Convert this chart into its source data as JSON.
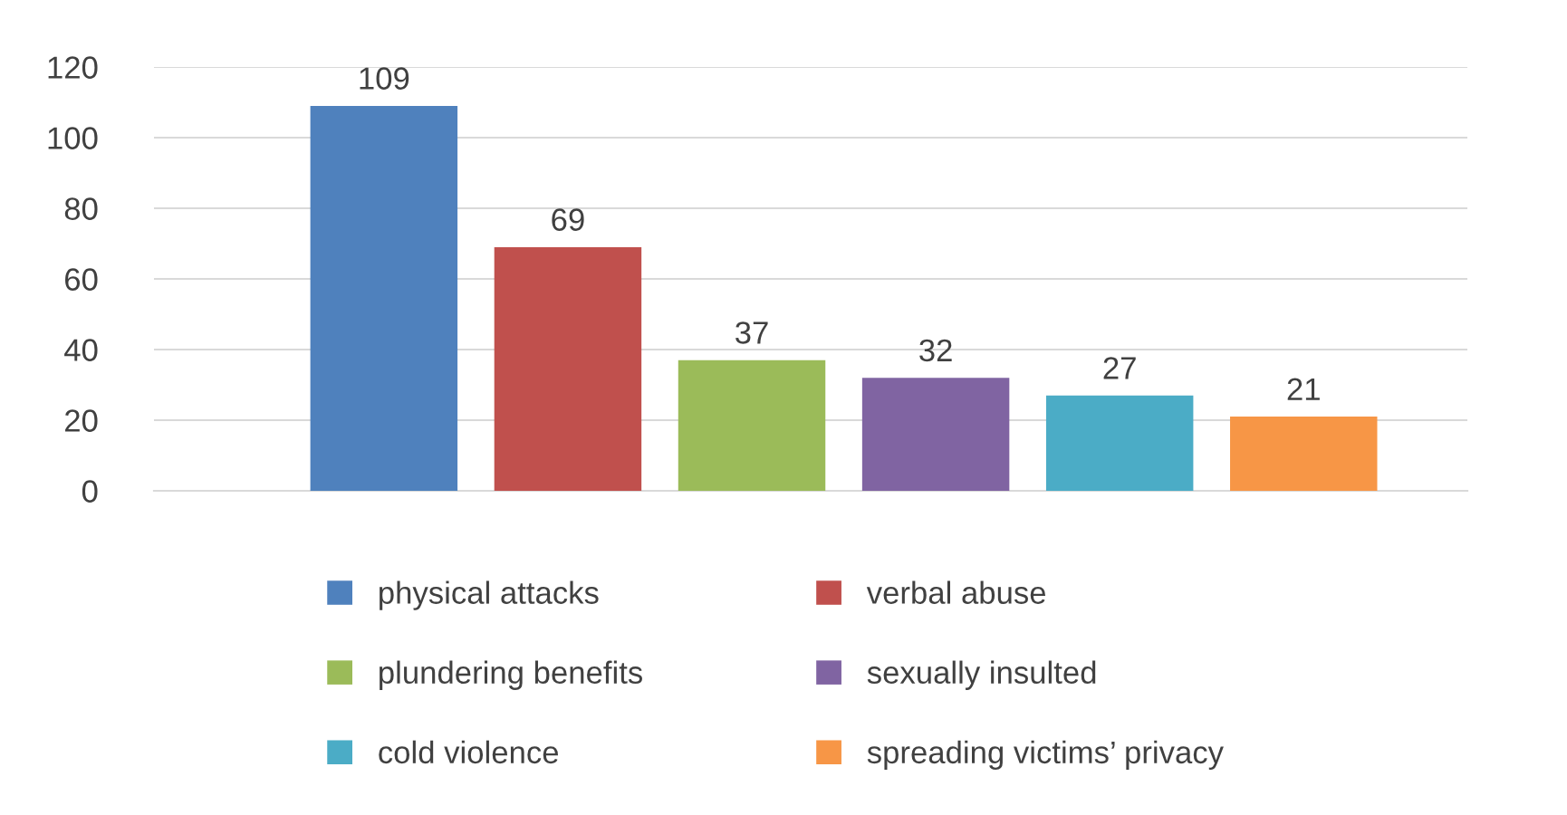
{
  "chart_data": {
    "type": "bar",
    "categories": [
      null,
      null,
      null,
      null,
      null,
      null
    ],
    "series": [
      {
        "name": "physical attacks",
        "color": "#4f81bd",
        "values": [
          109,
          null,
          null,
          null,
          null,
          null
        ]
      },
      {
        "name": "verbal abuse",
        "color": "#c0504d",
        "values": [
          null,
          69,
          null,
          null,
          null,
          null
        ]
      },
      {
        "name": "plundering benefits",
        "color": "#9bbb59",
        "values": [
          null,
          null,
          37,
          null,
          null,
          null
        ]
      },
      {
        "name": "sexually insulted",
        "color": "#8064a2",
        "values": [
          null,
          null,
          null,
          32,
          null,
          null
        ]
      },
      {
        "name": "cold violence",
        "color": "#4bacc6",
        "values": [
          null,
          null,
          null,
          null,
          27,
          null
        ]
      },
      {
        "name": "spreading victims’ privacy",
        "color": "#f79646",
        "values": [
          null,
          null,
          null,
          null,
          null,
          21
        ]
      }
    ],
    "ylim": [
      0,
      120
    ],
    "yticks": [
      0,
      20,
      40,
      60,
      80,
      100,
      120
    ],
    "stacked": true,
    "grid": "y",
    "legend": "bottom",
    "data_labels": true
  }
}
